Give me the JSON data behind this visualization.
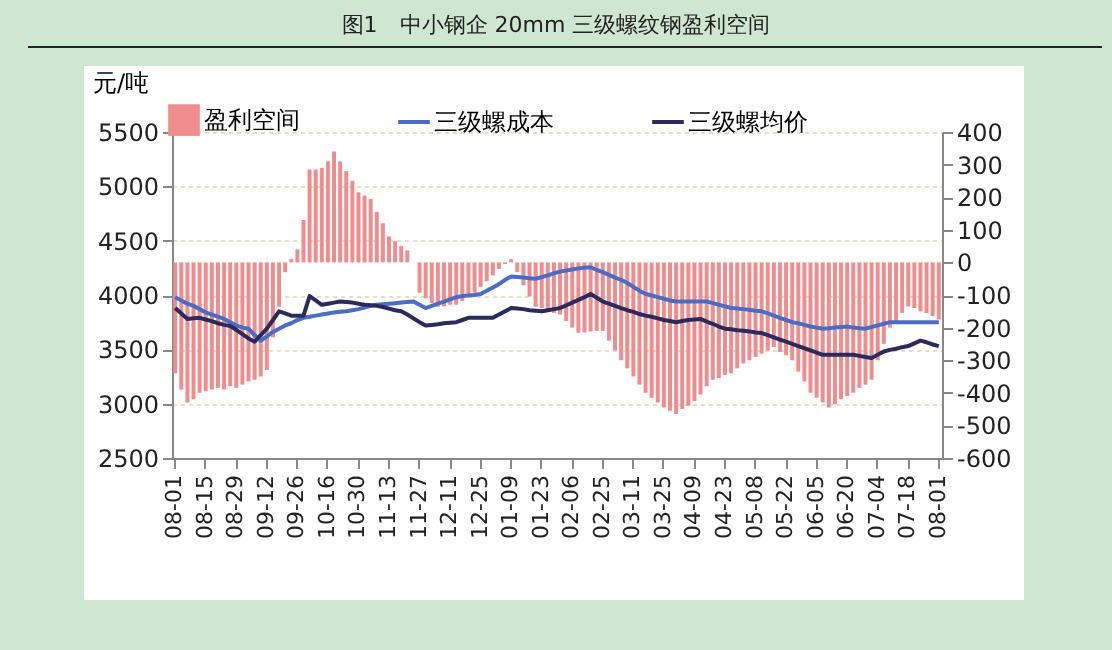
{
  "chart_data": {
    "type": "bar",
    "title": "图1　中小钢企 20mm 三级螺纹钢盈利空间",
    "ylabel": "元/吨",
    "categories": [
      "08-01",
      null,
      null,
      null,
      null,
      "08-15",
      null,
      null,
      null,
      null,
      "08-29",
      null,
      null,
      null,
      null,
      "09-12",
      null,
      null,
      null,
      null,
      "09-26",
      null,
      null,
      null,
      null,
      "10-16",
      null,
      null,
      null,
      null,
      "10-30",
      null,
      null,
      null,
      null,
      "11-13",
      null,
      null,
      null,
      null,
      "11-27",
      null,
      null,
      null,
      null,
      "12-11",
      null,
      null,
      null,
      null,
      "12-25",
      null,
      null,
      null,
      null,
      "01-09",
      null,
      null,
      null,
      null,
      "01-23",
      null,
      null,
      null,
      null,
      "02-06",
      null,
      null,
      null,
      null,
      "02-25",
      null,
      null,
      null,
      null,
      "03-11",
      null,
      null,
      null,
      null,
      "03-25",
      null,
      null,
      null,
      null,
      "04-09",
      null,
      null,
      null,
      null,
      "04-23",
      null,
      null,
      null,
      null,
      "05-08",
      null,
      null,
      null,
      null,
      "05-22",
      null,
      null,
      null,
      null,
      "06-05",
      null,
      null,
      null,
      null,
      "06-20",
      null,
      null,
      null,
      null,
      "07-04",
      null,
      null,
      null,
      null,
      "07-18",
      null,
      null,
      null,
      null,
      "08-01"
    ],
    "series": [
      {
        "name": "盈利空间",
        "axis": "y2",
        "color": "#f08c8c",
        "values": [
          -340,
          -390,
          -430,
          -420,
          -400,
          -395,
          -390,
          -385,
          -390,
          -380,
          -385,
          -375,
          -365,
          -360,
          -350,
          -330,
          -230,
          -136,
          -30,
          10,
          40,
          130,
          285,
          285,
          290,
          310,
          340,
          310,
          280,
          250,
          215,
          205,
          195,
          155,
          120,
          80,
          65,
          50,
          37,
          0,
          -93,
          -110,
          -125,
          -136,
          -135,
          -130,
          -130,
          -118,
          -105,
          -93,
          -75,
          -58,
          -40,
          -20,
          -5,
          10,
          -30,
          -70,
          -105,
          -136,
          -140,
          -150,
          -155,
          -160,
          -180,
          -200,
          -216,
          -215,
          -212,
          -210,
          -210,
          -240,
          -270,
          -300,
          -325,
          -350,
          -375,
          -400,
          -415,
          -430,
          -445,
          -455,
          -465,
          -450,
          -440,
          -425,
          -405,
          -380,
          -360,
          -355,
          -345,
          -340,
          -325,
          -310,
          -300,
          -290,
          -280,
          -270,
          -260,
          -275,
          -285,
          -300,
          -335,
          -365,
          -400,
          -415,
          -430,
          -445,
          -435,
          -420,
          -410,
          -400,
          -385,
          -375,
          -360,
          -300,
          -250,
          -200,
          -180,
          -155,
          -135,
          -140,
          -150,
          -155,
          -165,
          -175
        ]
      },
      {
        "name": "三级螺成本",
        "type": "line",
        "color": "#4a6cc4",
        "values": [
          3980,
          3950,
          3920,
          3900,
          3870,
          3840,
          3820,
          3800,
          3780,
          3750,
          3720,
          3700,
          3690,
          3630,
          3580,
          3620,
          3660,
          3690,
          3720,
          3740,
          3770,
          3790,
          3800,
          3810,
          3820,
          3830,
          3840,
          3845,
          3850,
          3860,
          3870,
          3885,
          3900,
          3910,
          3915,
          3920,
          3925,
          3930,
          3935,
          3940,
          3910,
          3880,
          3900,
          3920,
          3940,
          3960,
          3980,
          3990,
          3995,
          4000,
          4010,
          4040,
          4070,
          4100,
          4140,
          4170,
          4165,
          4160,
          4155,
          4150,
          4165,
          4180,
          4200,
          4215,
          4225,
          4235,
          4245,
          4250,
          4255,
          4230,
          4210,
          4185,
          4160,
          4140,
          4110,
          4075,
          4040,
          4010,
          3995,
          3980,
          3965,
          3950,
          3940,
          3940,
          3940,
          3940,
          3940,
          3940,
          3925,
          3910,
          3895,
          3880,
          3875,
          3870,
          3865,
          3855,
          3850,
          3830,
          3810,
          3790,
          3770,
          3750,
          3740,
          3725,
          3710,
          3700,
          3690,
          3695,
          3700,
          3705,
          3710,
          3700,
          3695,
          3690,
          3705,
          3720,
          3735,
          3750,
          3750,
          3750,
          3750,
          3750,
          3750,
          3750,
          3750,
          3750
        ]
      },
      {
        "name": "三级螺均价",
        "type": "line",
        "color": "#2a2a5c",
        "values": [
          3880,
          3830,
          3780,
          3785,
          3790,
          3775,
          3760,
          3740,
          3725,
          3715,
          3680,
          3640,
          3600,
          3570,
          3630,
          3690,
          3770,
          3850,
          3830,
          3810,
          3810,
          3810,
          3990,
          3950,
          3910,
          3920,
          3930,
          3940,
          3935,
          3930,
          3920,
          3910,
          3905,
          3900,
          3890,
          3875,
          3860,
          3850,
          3820,
          3785,
          3750,
          3720,
          3725,
          3730,
          3740,
          3745,
          3750,
          3770,
          3790,
          3790,
          3790,
          3790,
          3790,
          3820,
          3850,
          3880,
          3875,
          3870,
          3860,
          3855,
          3850,
          3860,
          3870,
          3880,
          3905,
          3930,
          3955,
          3980,
          4010,
          3975,
          3940,
          3920,
          3900,
          3880,
          3860,
          3845,
          3825,
          3810,
          3800,
          3785,
          3770,
          3760,
          3750,
          3760,
          3770,
          3775,
          3780,
          3755,
          3735,
          3710,
          3690,
          3685,
          3675,
          3670,
          3665,
          3655,
          3650,
          3630,
          3610,
          3590,
          3570,
          3550,
          3530,
          3510,
          3490,
          3470,
          3450,
          3450,
          3450,
          3450,
          3450,
          3450,
          3440,
          3430,
          3420,
          3450,
          3480,
          3495,
          3505,
          3520,
          3530,
          3555,
          3580,
          3565,
          3545,
          3530
        ]
      }
    ],
    "ylim": [
      2500,
      5500
    ],
    "yticks": [
      2500,
      3000,
      3500,
      4000,
      4500,
      5000,
      5500
    ],
    "y2lim": [
      -600,
      400
    ],
    "y2ticks": [
      -600,
      -500,
      -400,
      -300,
      -200,
      -100,
      0,
      100,
      200,
      300,
      400
    ],
    "grid": "y",
    "legend": "top"
  }
}
